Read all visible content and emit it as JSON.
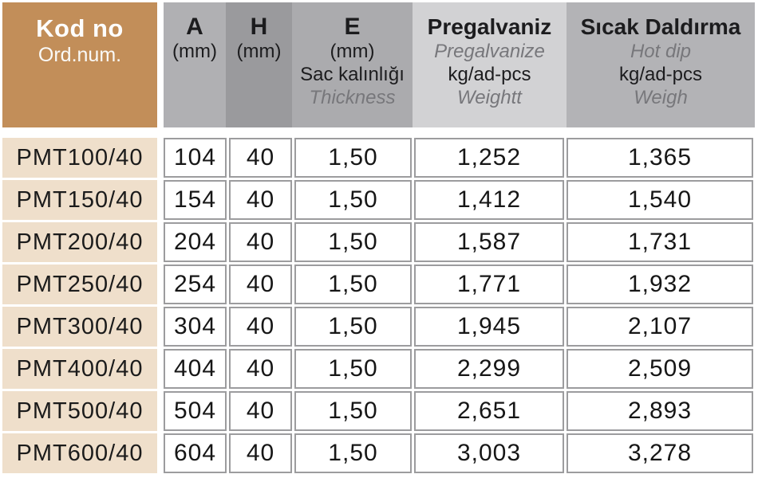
{
  "table": {
    "header": {
      "kod": {
        "title": "Kod no",
        "subtitle": "Ord.num."
      },
      "a": {
        "title": "A",
        "unit": "(mm)"
      },
      "h": {
        "title": "H",
        "unit": "(mm)"
      },
      "e": {
        "title": "E",
        "unit": "(mm)",
        "desc_tr": "Sac kalınlığı",
        "desc_en": "Thickness"
      },
      "pre": {
        "title": "Pregalvaniz",
        "title_en": "Pregalvanize",
        "unit": "kg/ad-pcs",
        "label_en": "Weightt"
      },
      "hot": {
        "title": "Sıcak Daldırma",
        "title_en": "Hot dip",
        "unit": "kg/ad-pcs",
        "label_en": "Weigh"
      }
    }
  },
  "colors": {
    "header_tan": "#C28E59",
    "row_tan": "#EFDFCB",
    "col_a_gray": "#B0B0B3",
    "col_h_gray": "#9A9A9D",
    "col_e_gray": "#ABABAE",
    "col_pregalvaniz_gray": "#D2D2D4",
    "col_hotdip_gray": "#B3B3B6",
    "cell_border_gray": "#9C9C9E",
    "text_dark": "#1A1A1A",
    "text_italic_gray": "#77777B",
    "header_text_white": "#FFFFFF"
  },
  "chart_data": {
    "type": "table",
    "columns": [
      "Kod no / Ord.num.",
      "A (mm)",
      "H (mm)",
      "E (mm) Sac kalınlığı / Thickness",
      "Pregalvaniz / Pregalvanize kg/ad-pcs Weightt",
      "Sıcak Daldırma / Hot dip kg/ad-pcs Weigh"
    ],
    "rows": [
      [
        "PMT100/40",
        "104",
        "40",
        "1,50",
        "1,252",
        "1,365"
      ],
      [
        "PMT150/40",
        "154",
        "40",
        "1,50",
        "1,412",
        "1,540"
      ],
      [
        "PMT200/40",
        "204",
        "40",
        "1,50",
        "1,587",
        "1,731"
      ],
      [
        "PMT250/40",
        "254",
        "40",
        "1,50",
        "1,771",
        "1,932"
      ],
      [
        "PMT300/40",
        "304",
        "40",
        "1,50",
        "1,945",
        "2,107"
      ],
      [
        "PMT400/40",
        "404",
        "40",
        "1,50",
        "2,299",
        "2,509"
      ],
      [
        "PMT500/40",
        "504",
        "40",
        "1,50",
        "2,651",
        "2,893"
      ],
      [
        "PMT600/40",
        "604",
        "40",
        "1,50",
        "3,003",
        "3,278"
      ]
    ]
  }
}
